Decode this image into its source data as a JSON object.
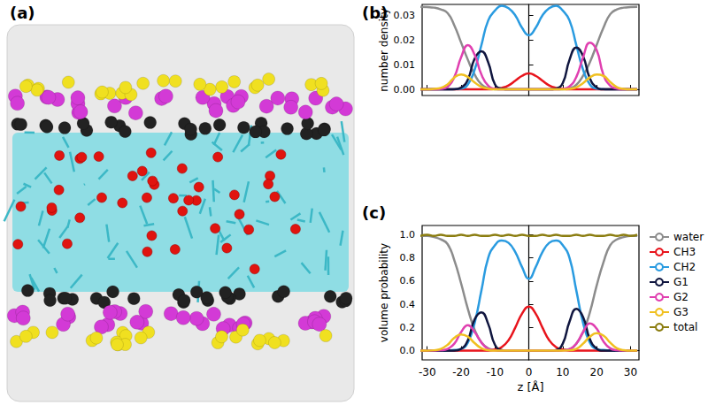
{
  "image": {
    "title": "(a)"
  },
  "chart_data": [
    {
      "type": "line",
      "title": "(b)",
      "y_label": "number density",
      "x": [
        -32,
        -30,
        -28,
        -26,
        -24,
        -22,
        -20,
        -18,
        -16,
        -14,
        -12,
        -10,
        -8,
        -6,
        -4,
        -2,
        0,
        2,
        4,
        6,
        8,
        10,
        12,
        14,
        16,
        18,
        20,
        22,
        24,
        26,
        28,
        30,
        32
      ],
      "xlim": [
        -31.5,
        32.5
      ],
      "xticks": [
        -30,
        -20,
        -10,
        0,
        10,
        20,
        30
      ],
      "ylim": [
        -0.0025,
        0.0345
      ],
      "yticks": [
        {
          "value": 0,
          "label": "0.00"
        },
        {
          "value": 0.01,
          "label": "0.01"
        },
        {
          "value": 0.02,
          "label": "0.02"
        },
        {
          "value": 0.03,
          "label": "0.03"
        }
      ],
      "grid": false,
      "tick_labels": "y",
      "series": [
        {
          "name": "water",
          "color": "#8c8c8c",
          "values": [
            0.0335,
            0.0334,
            0.0332,
            0.0325,
            0.031,
            0.026,
            0.019,
            0.012,
            0.006,
            0.002,
            0.0005,
            0,
            0,
            0,
            0,
            0,
            0,
            0,
            0,
            0,
            0,
            0,
            0.0004,
            0.0018,
            0.0055,
            0.011,
            0.018,
            0.025,
            0.0305,
            0.0325,
            0.0332,
            0.0334,
            0.0335
          ]
        },
        {
          "name": "CH3",
          "color": "#e8141c",
          "values": [
            0,
            0,
            0,
            0,
            0,
            0,
            0,
            0,
            0,
            0,
            0,
            0.0002,
            0.0006,
            0.0016,
            0.0035,
            0.0055,
            0.0065,
            0.0055,
            0.0035,
            0.0016,
            0.0006,
            0.0002,
            0,
            0,
            0,
            0,
            0,
            0,
            0,
            0,
            0,
            0,
            0
          ]
        },
        {
          "name": "CH2",
          "color": "#2a9be0",
          "values": [
            0,
            0,
            0,
            0,
            0,
            0.0001,
            0.0003,
            0.002,
            0.008,
            0.018,
            0.028,
            0.032,
            0.034,
            0.033,
            0.03,
            0.025,
            0.022,
            0.025,
            0.03,
            0.033,
            0.034,
            0.032,
            0.028,
            0.018,
            0.008,
            0.002,
            0.0003,
            0.0001,
            0,
            0,
            0,
            0,
            0
          ]
        },
        {
          "name": "G1",
          "color": "#10163f",
          "values": [
            0,
            0,
            0,
            0,
            0,
            0,
            0.0007,
            0.004,
            0.0125,
            0.0155,
            0.011,
            0.002,
            0.0003,
            0,
            0,
            0,
            0,
            0,
            0,
            0,
            0.0003,
            0.0025,
            0.012,
            0.017,
            0.0135,
            0.0045,
            0.0008,
            0,
            0,
            0,
            0,
            0,
            0
          ]
        },
        {
          "name": "G2",
          "color": "#e040b0",
          "values": [
            0,
            0,
            0,
            0.0002,
            0.001,
            0.005,
            0.013,
            0.018,
            0.014,
            0.006,
            0.0015,
            0.0002,
            0,
            0,
            0,
            0,
            0,
            0,
            0,
            0,
            0,
            0.0002,
            0.0012,
            0.005,
            0.013,
            0.019,
            0.016,
            0.006,
            0.0015,
            0.0003,
            0,
            0,
            0
          ]
        },
        {
          "name": "G3",
          "color": "#f0c020",
          "values": [
            0,
            0,
            0.0002,
            0.0006,
            0.002,
            0.0048,
            0.006,
            0.005,
            0.0028,
            0.001,
            0.0003,
            0,
            0,
            0,
            0,
            0,
            0,
            0,
            0,
            0,
            0,
            0,
            0.0002,
            0.0008,
            0.0025,
            0.0048,
            0.006,
            0.0055,
            0.003,
            0.0009,
            0.0002,
            0,
            0
          ]
        }
      ]
    },
    {
      "type": "line",
      "title": "(c)",
      "x_label": "z [Å]",
      "y_label": "volume probability",
      "x": [
        -32,
        -30,
        -28,
        -26,
        -24,
        -22,
        -20,
        -18,
        -16,
        -14,
        -12,
        -10,
        -8,
        -6,
        -4,
        -2,
        0,
        2,
        4,
        6,
        8,
        10,
        12,
        14,
        16,
        18,
        20,
        22,
        24,
        26,
        28,
        30,
        32
      ],
      "xlim": [
        -31.5,
        32.5
      ],
      "xticks": [
        -30,
        -20,
        -10,
        0,
        10,
        20,
        30
      ],
      "ylim": [
        -0.08,
        1.08
      ],
      "yticks": [
        {
          "value": 0,
          "label": "0.0"
        },
        {
          "value": 0.2,
          "label": "0.2"
        },
        {
          "value": 0.4,
          "label": "0.4"
        },
        {
          "value": 0.6,
          "label": "0.6"
        },
        {
          "value": 0.8,
          "label": "0.8"
        },
        {
          "value": 1,
          "label": "1.0"
        }
      ],
      "grid": false,
      "legend": "right",
      "series": [
        {
          "name": "water",
          "color": "#8c8c8c",
          "values": [
            0.99,
            0.99,
            0.98,
            0.96,
            0.92,
            0.78,
            0.58,
            0.36,
            0.18,
            0.07,
            0.02,
            0.005,
            0,
            0,
            0,
            0,
            0,
            0,
            0,
            0,
            0,
            0.005,
            0.015,
            0.06,
            0.16,
            0.33,
            0.56,
            0.76,
            0.91,
            0.96,
            0.98,
            0.99,
            0.99
          ]
        },
        {
          "name": "CH3",
          "color": "#e8141c",
          "values": [
            0,
            0,
            0,
            0,
            0,
            0,
            0,
            0,
            0,
            0,
            0,
            0.01,
            0.03,
            0.09,
            0.2,
            0.32,
            0.38,
            0.32,
            0.2,
            0.09,
            0.03,
            0.01,
            0,
            0,
            0,
            0,
            0,
            0,
            0,
            0,
            0,
            0,
            0
          ]
        },
        {
          "name": "CH2",
          "color": "#2a9be0",
          "values": [
            0,
            0,
            0,
            0,
            0.002,
            0.005,
            0.015,
            0.07,
            0.24,
            0.52,
            0.8,
            0.91,
            0.95,
            0.93,
            0.85,
            0.72,
            0.62,
            0.72,
            0.85,
            0.93,
            0.95,
            0.91,
            0.8,
            0.52,
            0.24,
            0.07,
            0.015,
            0.005,
            0.002,
            0,
            0,
            0,
            0
          ]
        },
        {
          "name": "G1",
          "color": "#10163f",
          "values": [
            0,
            0,
            0,
            0,
            0,
            0,
            0.015,
            0.09,
            0.27,
            0.33,
            0.23,
            0.05,
            0.005,
            0,
            0,
            0,
            0,
            0,
            0,
            0,
            0.005,
            0.06,
            0.25,
            0.36,
            0.29,
            0.1,
            0.018,
            0,
            0,
            0,
            0,
            0,
            0
          ]
        },
        {
          "name": "G2",
          "color": "#e040b0",
          "values": [
            0,
            0,
            0,
            0.003,
            0.015,
            0.06,
            0.16,
            0.22,
            0.16,
            0.07,
            0.015,
            0.002,
            0,
            0,
            0,
            0,
            0,
            0,
            0,
            0,
            0,
            0.002,
            0.012,
            0.06,
            0.16,
            0.235,
            0.19,
            0.08,
            0.02,
            0.004,
            0,
            0,
            0
          ]
        },
        {
          "name": "G3",
          "color": "#f0c020",
          "values": [
            0,
            0,
            0.003,
            0.015,
            0.05,
            0.11,
            0.14,
            0.12,
            0.065,
            0.02,
            0.004,
            0,
            0,
            0,
            0,
            0,
            0,
            0,
            0,
            0,
            0,
            0,
            0.003,
            0.015,
            0.06,
            0.12,
            0.15,
            0.13,
            0.07,
            0.02,
            0.004,
            0,
            0
          ]
        },
        {
          "name": "total",
          "color": "#8b7d10",
          "values": [
            0.99,
            1.0,
            0.99,
            1.0,
            0.99,
            0.99,
            1.0,
            0.99,
            1.0,
            0.99,
            0.99,
            1.0,
            0.99,
            1.0,
            0.99,
            1.0,
            0.99,
            0.99,
            1.0,
            0.99,
            1.0,
            0.99,
            0.99,
            1.0,
            0.99,
            1.0,
            0.99,
            0.99,
            1.0,
            0.99,
            1.0,
            0.99,
            1.0
          ]
        }
      ]
    }
  ]
}
